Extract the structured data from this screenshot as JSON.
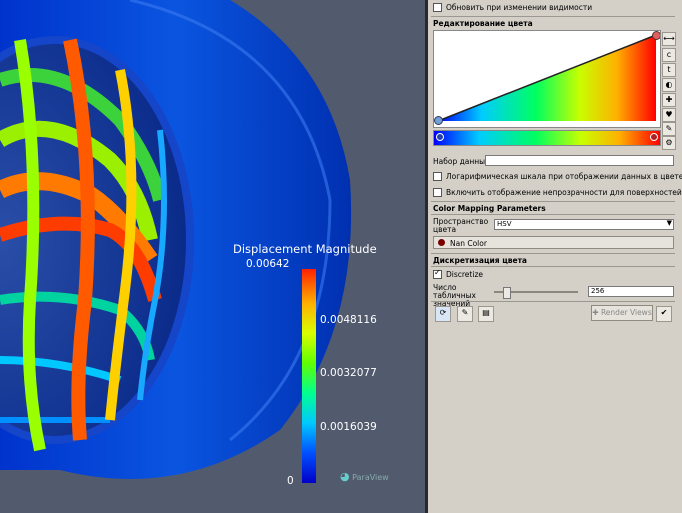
{
  "viewport": {
    "legend": {
      "title": "Displacement Magnitude",
      "ticks": [
        "0.00642",
        "0.0048116",
        "0.0032077",
        "0.0016039",
        "0"
      ]
    },
    "watermark": "ParaView"
  },
  "panel": {
    "update_on_visibility_label": "Обновить  при изменении видимости",
    "color_editing_header": "Редактирование цвета",
    "dataset_label": "Набор данных",
    "log_scale_label": "Логарифмическая шкала при отображении данных в цвете",
    "opacity_label": "Включить отображение непрозрачности для поверхностей",
    "color_mapping_header": "Color Mapping Parameters",
    "color_space_label": "Пространство цвета",
    "color_space_value": "HSV",
    "nan_color_label": "Nan Color",
    "discretization_header": "Дискретизация цвета",
    "discretize_label": "Discretize",
    "table_values_label": "Число табличных значений",
    "table_values_value": "256",
    "table_values_fraction": 0.11,
    "render_views_label": "Render Views"
  },
  "colors": {
    "viewport_bg": "#525a6e",
    "nan_color": "#7a0000"
  }
}
